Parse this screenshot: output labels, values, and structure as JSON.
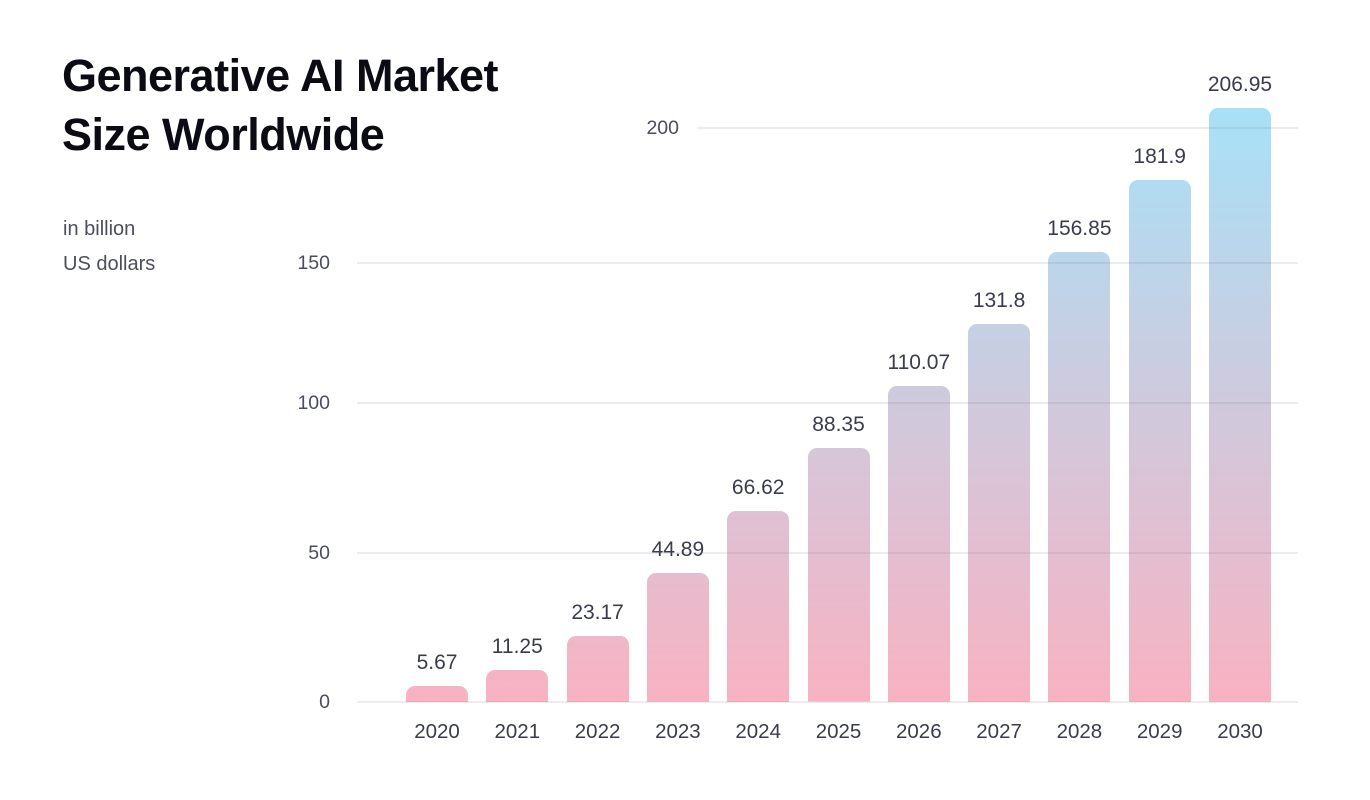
{
  "header": {
    "title_lines": [
      "Generative AI Market",
      "Size Worldwide"
    ],
    "subtitle_lines": [
      "in billion",
      "US dollars"
    ]
  },
  "chart_data": {
    "type": "bar",
    "title": "Generative AI Market Size Worldwide",
    "unit_label": "in billion US dollars",
    "categories": [
      "2020",
      "2021",
      "2022",
      "2023",
      "2024",
      "2025",
      "2026",
      "2027",
      "2028",
      "2029",
      "2030"
    ],
    "values": [
      5.67,
      11.25,
      23.17,
      44.89,
      66.62,
      88.35,
      110.07,
      131.8,
      156.85,
      181.9,
      206.95
    ],
    "value_labels": [
      "5.67",
      "11.25",
      "23.17",
      "44.89",
      "66.62",
      "88.35",
      "110.07",
      "131.8",
      "156.85",
      "181.9",
      "206.95"
    ],
    "xlabel": "",
    "ylabel": "",
    "yticks": [
      0,
      50,
      100,
      150,
      200
    ],
    "ylim": [
      0,
      209
    ],
    "grid": true,
    "legend": "none",
    "colors": {
      "bar_gradient_bottom": "#f8b2c2",
      "bar_gradient_top": "#a7e1f8",
      "gridline_rgba": "rgba(105,105,125,0.13)",
      "tick_label": "#4b4d5c",
      "value_label": "#3a3c4b",
      "category_label": "#3a3c4b",
      "title": "#0b0b13",
      "subtitle": "#4c4e5c"
    }
  }
}
